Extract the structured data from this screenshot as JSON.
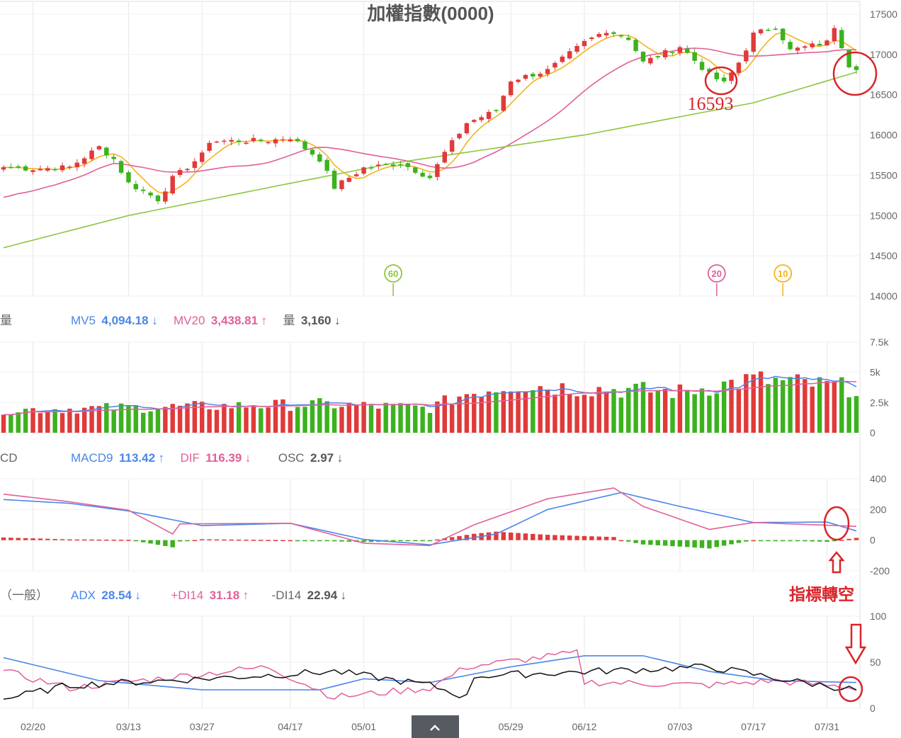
{
  "title": "加權指數(0000)",
  "colors": {
    "up": "#e03a3a",
    "down": "#3cb21e",
    "ma5": "#f5b31c",
    "ma10": "#f5b31c",
    "ma20": "#e0609a",
    "ma60": "#8cc63f",
    "mv5": "#4a86e8",
    "mv20": "#e0609a",
    "macd9": "#4a86e8",
    "dif": "#e0609a",
    "adx": "#4a86e8",
    "pdi": "#e0609a",
    "mdi": "#111111",
    "annotation": "#d9252a",
    "grid": "#e8e8e8"
  },
  "legends": {
    "volume": {
      "name": "量",
      "items": [
        {
          "label": "MV5",
          "value": "4,094.18",
          "arrow": "↓",
          "color": "#4a86e8"
        },
        {
          "label": "MV20",
          "value": "3,438.81",
          "arrow": "↑",
          "color": "#e0609a"
        },
        {
          "label": "量",
          "value": "3,160",
          "arrow": "↓",
          "color": "#666666"
        }
      ]
    },
    "macd": {
      "name": "CD",
      "items": [
        {
          "label": "MACD9",
          "value": "113.42",
          "arrow": "↑",
          "color": "#4a86e8"
        },
        {
          "label": "DIF",
          "value": "116.39",
          "arrow": "↓",
          "color": "#e0609a"
        },
        {
          "label": "OSC",
          "value": "2.97",
          "arrow": "↓",
          "color": "#666666"
        }
      ]
    },
    "dmi": {
      "name": "（一般）",
      "items": [
        {
          "label": "ADX",
          "value": "28.54",
          "arrow": "↓",
          "color": "#4a86e8"
        },
        {
          "label": "+DI14",
          "value": "31.18",
          "arrow": "↑",
          "color": "#e0609a"
        },
        {
          "label": "-DI14",
          "value": "22.94",
          "arrow": "↓",
          "color": "#666666"
        }
      ]
    }
  },
  "annotations": {
    "low_value": "16593",
    "indicator_text": "指標轉空",
    "ma_badges": [
      {
        "label": "60",
        "color": "#8cc63f",
        "at_date": "05/05"
      },
      {
        "label": "20",
        "color": "#e0609a",
        "at_date": "07/10"
      },
      {
        "label": "10",
        "color": "#f5b31c",
        "at_date": "07/21"
      }
    ]
  },
  "chart_data": [
    {
      "type": "candlestick",
      "title": "加權指數(0000)",
      "x_ticks": [
        "02/20",
        "03/13",
        "03/27",
        "04/17",
        "05/01",
        "05/29",
        "06/12",
        "07/03",
        "07/17",
        "07/31"
      ],
      "ylim": [
        14000,
        17500
      ],
      "y_ticks": [
        14000,
        14500,
        15000,
        15500,
        16000,
        16500,
        17000,
        17500
      ],
      "anchors": [
        {
          "date": "02/14",
          "close": 15600
        },
        {
          "date": "02/20",
          "close": 15580
        },
        {
          "date": "03/01",
          "close": 15600
        },
        {
          "date": "03/07",
          "close": 15850
        },
        {
          "date": "03/09",
          "close": 15700
        },
        {
          "date": "03/13",
          "close": 15400
        },
        {
          "date": "03/17",
          "close": 15200
        },
        {
          "date": "03/21",
          "close": 15460
        },
        {
          "date": "03/27",
          "close": 15750
        },
        {
          "date": "04/03",
          "close": 15900
        },
        {
          "date": "04/12",
          "close": 15930
        },
        {
          "date": "04/17",
          "close": 15970
        },
        {
          "date": "04/21",
          "close": 15700
        },
        {
          "date": "04/25",
          "close": 15350
        },
        {
          "date": "05/01",
          "close": 15590
        },
        {
          "date": "05/08",
          "close": 15650
        },
        {
          "date": "05/12",
          "close": 15470
        },
        {
          "date": "05/16",
          "close": 15780
        },
        {
          "date": "05/19",
          "close": 16150
        },
        {
          "date": "05/25",
          "close": 16300
        },
        {
          "date": "05/29",
          "close": 16680
        },
        {
          "date": "06/05",
          "close": 16800
        },
        {
          "date": "06/12",
          "close": 17150
        },
        {
          "date": "06/15",
          "close": 17300
        },
        {
          "date": "06/20",
          "close": 17200
        },
        {
          "date": "06/26",
          "close": 16900
        },
        {
          "date": "07/03",
          "close": 17100
        },
        {
          "date": "07/07",
          "close": 16750
        },
        {
          "date": "07/11",
          "close": 16640
        },
        {
          "date": "07/13",
          "close": 16900
        },
        {
          "date": "07/17",
          "close": 17250
        },
        {
          "date": "07/20",
          "close": 17350
        },
        {
          "date": "07/24",
          "close": 17050
        },
        {
          "date": "07/31",
          "close": 17150
        },
        {
          "date": "08/01",
          "close": 17350
        },
        {
          "date": "08/03",
          "close": 16870
        },
        {
          "date": "08/04",
          "close": 16840
        }
      ],
      "moving_averages": [
        "MA5",
        "MA20",
        "MA60"
      ]
    },
    {
      "type": "bar",
      "title": "量",
      "ylim": [
        0,
        7500
      ],
      "y_ticks": [
        "0",
        "2.5k",
        "5k",
        "7.5k"
      ],
      "series": [
        {
          "name": "MV5",
          "value": 4094.18
        },
        {
          "name": "MV20",
          "value": 3438.81
        },
        {
          "name": "量",
          "value": 3160
        }
      ],
      "anchors": [
        {
          "date": "02/14",
          "value": 1850
        },
        {
          "date": "04/21",
          "value": 2300
        },
        {
          "date": "05/12",
          "value": 2000
        },
        {
          "date": "05/19",
          "value": 3200
        },
        {
          "date": "05/29",
          "value": 3900
        },
        {
          "date": "06/12",
          "value": 3600
        },
        {
          "date": "07/03",
          "value": 3300
        },
        {
          "date": "07/17",
          "value": 4300
        },
        {
          "date": "08/04",
          "value": 3600
        }
      ]
    },
    {
      "type": "line",
      "title": "MACD",
      "ylim": [
        -200,
        400
      ],
      "y_ticks": [
        -200,
        0,
        200,
        400
      ],
      "series": [
        {
          "name": "MACD9",
          "value": 113.42,
          "anchors": [
            {
              "date": "02/14",
              "value": 265
            },
            {
              "date": "03/01",
              "value": 240
            },
            {
              "date": "03/13",
              "value": 190
            },
            {
              "date": "03/27",
              "value": 95
            },
            {
              "date": "04/17",
              "value": 110
            },
            {
              "date": "05/01",
              "value": 5
            },
            {
              "date": "05/12",
              "value": -30
            },
            {
              "date": "05/25",
              "value": 40
            },
            {
              "date": "06/05",
              "value": 200
            },
            {
              "date": "06/19",
              "value": 310
            },
            {
              "date": "07/03",
              "value": 220
            },
            {
              "date": "07/17",
              "value": 115
            },
            {
              "date": "07/31",
              "value": 118
            },
            {
              "date": "08/04",
              "value": 60
            }
          ]
        },
        {
          "name": "DIF",
          "value": 116.39,
          "anchors": [
            {
              "date": "02/14",
              "value": 300
            },
            {
              "date": "03/01",
              "value": 250
            },
            {
              "date": "03/13",
              "value": 195
            },
            {
              "date": "03/21",
              "value": 40
            },
            {
              "date": "04/03",
              "value": 100
            },
            {
              "date": "04/17",
              "value": 110
            },
            {
              "date": "05/01",
              "value": -20
            },
            {
              "date": "05/12",
              "value": -35
            },
            {
              "date": "05/22",
              "value": 100
            },
            {
              "date": "06/05",
              "value": 270
            },
            {
              "date": "06/16",
              "value": 340
            },
            {
              "date": "06/26",
              "value": 220
            },
            {
              "date": "07/07",
              "value": 70
            },
            {
              "date": "07/17",
              "value": 115
            },
            {
              "date": "08/04",
              "value": 90
            }
          ]
        },
        {
          "name": "OSC",
          "value": 2.97
        }
      ]
    },
    {
      "type": "line",
      "title": "DMI（一般）",
      "ylim": [
        0,
        100
      ],
      "y_ticks": [
        0,
        50,
        100
      ],
      "series": [
        {
          "name": "ADX",
          "value": 28.54,
          "anchors": [
            {
              "date": "02/14",
              "value": 55
            },
            {
              "date": "03/07",
              "value": 30
            },
            {
              "date": "03/27",
              "value": 20
            },
            {
              "date": "04/21",
              "value": 20
            },
            {
              "date": "05/01",
              "value": 32
            },
            {
              "date": "05/12",
              "value": 28
            },
            {
              "date": "05/29",
              "value": 45
            },
            {
              "date": "06/12",
              "value": 57
            },
            {
              "date": "06/26",
              "value": 57
            },
            {
              "date": "07/07",
              "value": 40
            },
            {
              "date": "07/20",
              "value": 30
            },
            {
              "date": "08/04",
              "value": 28
            }
          ]
        },
        {
          "name": "+DI14",
          "value": 31.18,
          "anchors": [
            {
              "date": "02/14",
              "value": 40
            },
            {
              "date": "03/01",
              "value": 22
            },
            {
              "date": "04/12",
              "value": 45
            },
            {
              "date": "04/25",
              "value": 12
            },
            {
              "date": "05/12",
              "value": 22
            },
            {
              "date": "05/19",
              "value": 45
            },
            {
              "date": "06/09",
              "value": 60
            },
            {
              "date": "06/23",
              "value": 45
            },
            {
              "date": "07/07",
              "value": 25
            },
            {
              "date": "07/20",
              "value": 30
            },
            {
              "date": "08/04",
              "value": 22
            }
          ]
        },
        {
          "name": "-DI14",
          "value": 22.94,
          "anchors": [
            {
              "date": "02/14",
              "value": 10
            },
            {
              "date": "03/01",
              "value": 25
            },
            {
              "date": "03/27",
              "value": 32
            },
            {
              "date": "04/25",
              "value": 40
            },
            {
              "date": "05/12",
              "value": 25
            },
            {
              "date": "05/19",
              "value": 12
            },
            {
              "date": "06/23",
              "value": 15
            },
            {
              "date": "07/07",
              "value": 45
            },
            {
              "date": "07/24",
              "value": 30
            },
            {
              "date": "08/04",
              "value": 20
            }
          ]
        }
      ]
    }
  ]
}
